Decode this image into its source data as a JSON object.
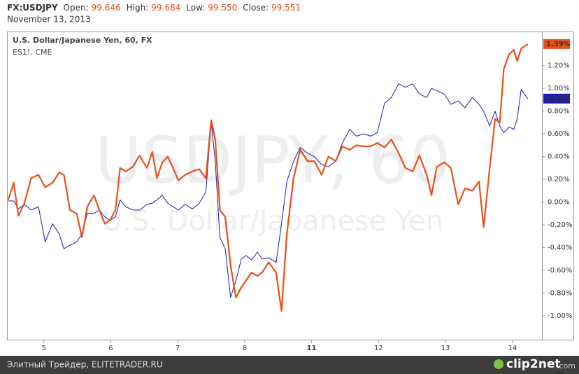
{
  "header": {
    "symbol": "FX:USDJPY",
    "fields": [
      {
        "name": "Open:",
        "value": "99.646"
      },
      {
        "name": "High:",
        "value": "99.684"
      },
      {
        "name": "Low:",
        "value": "99.550"
      },
      {
        "name": "Close:",
        "value": "99.551"
      }
    ],
    "date": "November 13, 2013"
  },
  "watermark": {
    "main": "USDJPY, 60",
    "sub": "U.S. Dollar/Japanese Yen"
  },
  "footer": {
    "source": "Элитный Трейдер, ELITETRADER.RU",
    "logo": "clip2net",
    "logo_suffix": ".com"
  },
  "chart_data": {
    "type": "line",
    "x": [
      -0.53,
      -0.45,
      -0.38,
      -0.29,
      -0.19,
      -0.08,
      0.02,
      0.13,
      0.23,
      0.3,
      0.39,
      0.49,
      0.57,
      0.65,
      0.75,
      0.83,
      0.91,
      0.99,
      1.07,
      1.14,
      1.22,
      1.33,
      1.43,
      1.54,
      1.62,
      1.69,
      1.77,
      1.85,
      1.93,
      2.01,
      2.11,
      2.22,
      2.32,
      2.42,
      2.5,
      2.56,
      2.63,
      2.71,
      2.79,
      2.87,
      2.95,
      3.02,
      3.1,
      3.19,
      3.26,
      3.36,
      3.47,
      3.55,
      3.63,
      3.73,
      3.83,
      3.94,
      4.04,
      4.15,
      4.25,
      4.36,
      4.46,
      4.57,
      4.67,
      4.78,
      4.88,
      4.98,
      5.09,
      5.19,
      5.3,
      5.4,
      5.51,
      5.61,
      5.72,
      5.79,
      5.87,
      5.98,
      6.08,
      6.19,
      6.29,
      6.4,
      6.5,
      6.57,
      6.66,
      6.74,
      6.81,
      6.87,
      6.95,
      7.02,
      7.07,
      7.13,
      7.23
    ],
    "series": [
      {
        "name": "U.S. Dollar/Japanese Yen, 60, FX",
        "color": "#1c1cb4",
        "end_label": {
          "value": 0.91,
          "label": "0.91%"
        },
        "values": [
          0.01,
          0.01,
          -0.06,
          -0.02,
          -0.07,
          -0.04,
          -0.35,
          -0.19,
          -0.28,
          -0.41,
          -0.38,
          -0.35,
          -0.28,
          -0.1,
          -0.1,
          -0.07,
          -0.13,
          -0.16,
          -0.13,
          0.02,
          -0.04,
          -0.07,
          -0.07,
          -0.02,
          -0.01,
          0.02,
          0.06,
          -0.01,
          -0.04,
          -0.07,
          -0.02,
          -0.06,
          -0.01,
          0.09,
          0.7,
          0.36,
          -0.31,
          -0.41,
          -0.84,
          -0.69,
          -0.5,
          -0.47,
          -0.51,
          -0.44,
          -0.5,
          -0.49,
          -0.53,
          -0.19,
          0.18,
          0.36,
          0.48,
          0.43,
          0.4,
          0.33,
          0.31,
          0.36,
          0.52,
          0.64,
          0.58,
          0.6,
          0.58,
          0.61,
          0.87,
          0.92,
          1.04,
          1.01,
          1.04,
          0.95,
          0.92,
          1.0,
          0.98,
          0.95,
          0.86,
          0.89,
          0.83,
          0.92,
          0.86,
          0.8,
          0.67,
          0.8,
          0.67,
          0.61,
          0.66,
          0.64,
          0.73,
          0.99,
          0.91
        ]
      },
      {
        "name": "ES1!, CME",
        "color": "#e8501a",
        "end_label": {
          "value": 1.39,
          "label": "1.39%"
        },
        "values": [
          0.02,
          0.17,
          -0.12,
          -0.01,
          0.21,
          0.24,
          0.13,
          0.17,
          0.26,
          0.24,
          -0.07,
          -0.1,
          -0.31,
          -0.04,
          0.06,
          -0.07,
          -0.19,
          -0.16,
          -0.07,
          0.3,
          0.27,
          0.31,
          0.41,
          0.3,
          0.44,
          0.21,
          0.35,
          0.4,
          0.3,
          0.19,
          0.24,
          0.27,
          0.29,
          0.21,
          0.72,
          0.55,
          -0.07,
          -0.13,
          -0.56,
          -0.84,
          -0.75,
          -0.69,
          -0.62,
          -0.65,
          -0.62,
          -0.53,
          -0.62,
          -0.96,
          -0.28,
          0.21,
          0.46,
          0.36,
          0.36,
          0.24,
          0.4,
          0.36,
          0.49,
          0.46,
          0.5,
          0.49,
          0.49,
          0.52,
          0.48,
          0.55,
          0.43,
          0.3,
          0.27,
          0.41,
          0.24,
          0.06,
          0.31,
          0.35,
          0.3,
          -0.02,
          0.12,
          0.1,
          0.18,
          -0.22,
          0.3,
          0.73,
          0.7,
          1.17,
          1.3,
          1.34,
          1.24,
          1.35,
          1.39
        ]
      }
    ],
    "xlim": [
      -0.55,
      7.44
    ],
    "xticks": [
      {
        "value": 0,
        "label": "5"
      },
      {
        "value": 1,
        "label": "6"
      },
      {
        "value": 2,
        "label": "7"
      },
      {
        "value": 3,
        "label": "8"
      },
      {
        "value": 4,
        "label": "11"
      },
      {
        "value": 5,
        "label": "12"
      },
      {
        "value": 6,
        "label": "13"
      },
      {
        "value": 7,
        "label": "14"
      }
    ],
    "ylim": [
      -1.21,
      1.5
    ],
    "yticks": [
      {
        "value": 1.2,
        "label": "1.20%"
      },
      {
        "value": 1.0,
        "label": "1.00%"
      },
      {
        "value": 0.8,
        "label": "0.80%"
      },
      {
        "value": 0.6,
        "label": "0.60%"
      },
      {
        "value": 0.4,
        "label": "0.40%"
      },
      {
        "value": 0.2,
        "label": "0.20%"
      },
      {
        "value": 0.0,
        "label": "0.00%"
      },
      {
        "value": -0.2,
        "label": "-0.20%"
      },
      {
        "value": -0.4,
        "label": "-0.40%"
      },
      {
        "value": -0.6,
        "label": "-0.60%"
      },
      {
        "value": -0.8,
        "label": "-0.80%"
      },
      {
        "value": -1.0,
        "label": "-1.00%"
      }
    ]
  }
}
